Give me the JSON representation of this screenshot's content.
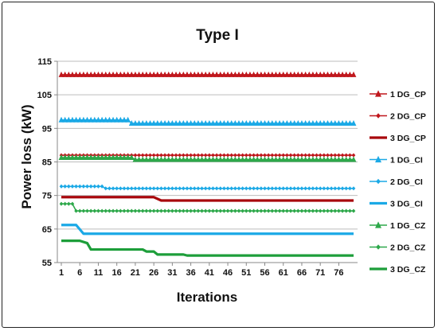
{
  "chart_data": {
    "type": "line",
    "title": "Type I",
    "xlabel": "Iterations",
    "ylabel": "Power loss (kW)",
    "xlim": [
      1,
      80
    ],
    "ylim": [
      55,
      115
    ],
    "x_ticks": [
      1,
      6,
      11,
      16,
      21,
      26,
      31,
      36,
      41,
      46,
      51,
      56,
      61,
      66,
      71,
      76
    ],
    "y_ticks": [
      55,
      65,
      75,
      85,
      95,
      105,
      115
    ],
    "grid": "horizontal",
    "legend_position": "right",
    "series": [
      {
        "name": "1 DG_CP",
        "color": "#c0171c",
        "marker": "triangle",
        "points": [
          [
            1,
            111
          ],
          [
            80,
            111
          ]
        ]
      },
      {
        "name": "2 DG_CP",
        "color": "#c0171c",
        "marker": "diamond",
        "points": [
          [
            1,
            87
          ],
          [
            80,
            87
          ]
        ]
      },
      {
        "name": "3 DG_CP",
        "color": "#a8070c",
        "marker": "none",
        "thick": true,
        "points": [
          [
            1,
            74.5
          ],
          [
            26,
            74.5
          ],
          [
            28,
            73.5
          ],
          [
            80,
            73.5
          ]
        ]
      },
      {
        "name": "1 DG_CI",
        "color": "#1ba9e6",
        "marker": "triangle",
        "points": [
          [
            1,
            97.5
          ],
          [
            19,
            97.5
          ],
          [
            20,
            96.5
          ],
          [
            80,
            96.5
          ]
        ]
      },
      {
        "name": "2 DG_CI",
        "color": "#1ba9e6",
        "marker": "diamond",
        "points": [
          [
            1,
            77.7
          ],
          [
            12,
            77.7
          ],
          [
            13,
            77.1
          ],
          [
            80,
            77.1
          ]
        ]
      },
      {
        "name": "3 DG_CI",
        "color": "#1ba9e6",
        "marker": "none",
        "thick": true,
        "points": [
          [
            1,
            66.2
          ],
          [
            5,
            66.2
          ],
          [
            7,
            63.6
          ],
          [
            80,
            63.6
          ]
        ]
      },
      {
        "name": "1 DG_CZ",
        "color": "#2da84a",
        "marker": "triangle",
        "points": [
          [
            1,
            86.3
          ],
          [
            20,
            86.3
          ],
          [
            21,
            85.7
          ],
          [
            80,
            85.7
          ]
        ]
      },
      {
        "name": "2 DG_CZ",
        "color": "#2da84a",
        "marker": "diamond",
        "points": [
          [
            1,
            72.5
          ],
          [
            4,
            72.5
          ],
          [
            5,
            70.4
          ],
          [
            80,
            70.4
          ]
        ]
      },
      {
        "name": "3 DG_CZ",
        "color": "#1d9e3a",
        "marker": "none",
        "thick": true,
        "points": [
          [
            1,
            61.5
          ],
          [
            6,
            61.5
          ],
          [
            8,
            60.8
          ],
          [
            9,
            58.9
          ],
          [
            23,
            58.9
          ],
          [
            24,
            58.3
          ],
          [
            26,
            58.3
          ],
          [
            27,
            57.4
          ],
          [
            34,
            57.4
          ],
          [
            35,
            57.1
          ],
          [
            80,
            57.1
          ]
        ]
      }
    ]
  }
}
